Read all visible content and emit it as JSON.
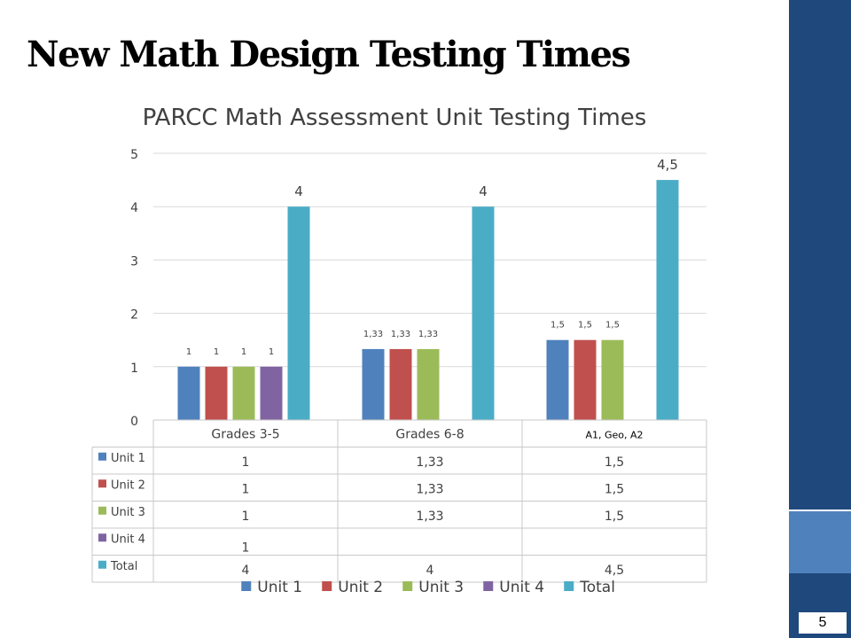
{
  "slide": {
    "title": "New Math Design Testing Times",
    "page_number": "5"
  },
  "colors": {
    "sidebar_dark": "#1f497d",
    "sidebar_light": "#4f81bd"
  },
  "chart_data": {
    "type": "bar",
    "title": "PARCC Math Assessment Unit Testing Times",
    "categories": [
      "Grades 3-5",
      "Grades 6-8",
      "A1, Geo, A2"
    ],
    "series": [
      {
        "name": "Unit 1",
        "color": "#4f81bd",
        "values": [
          1,
          1.33,
          1.5
        ],
        "labels": [
          "1",
          "1,33",
          "1,5"
        ]
      },
      {
        "name": "Unit 2",
        "color": "#c0504d",
        "values": [
          1,
          1.33,
          1.5
        ],
        "labels": [
          "1",
          "1,33",
          "1,5"
        ]
      },
      {
        "name": "Unit 3",
        "color": "#9bbb59",
        "values": [
          1,
          1.33,
          1.5
        ],
        "labels": [
          "1",
          "1,33",
          "1,5"
        ]
      },
      {
        "name": "Unit 4",
        "color": "#8064a2",
        "values": [
          1,
          null,
          null
        ],
        "labels": [
          "1",
          "",
          ""
        ]
      },
      {
        "name": "Total",
        "color": "#4bacc6",
        "values": [
          4,
          4,
          4.5
        ],
        "labels": [
          "4",
          "4",
          "4,5"
        ]
      }
    ],
    "y_ticks": [
      "0",
      "1",
      "2",
      "3",
      "4",
      "5"
    ],
    "ylim": [
      0,
      5
    ],
    "grid": true,
    "data_table": true,
    "legend_position": "bottom"
  }
}
